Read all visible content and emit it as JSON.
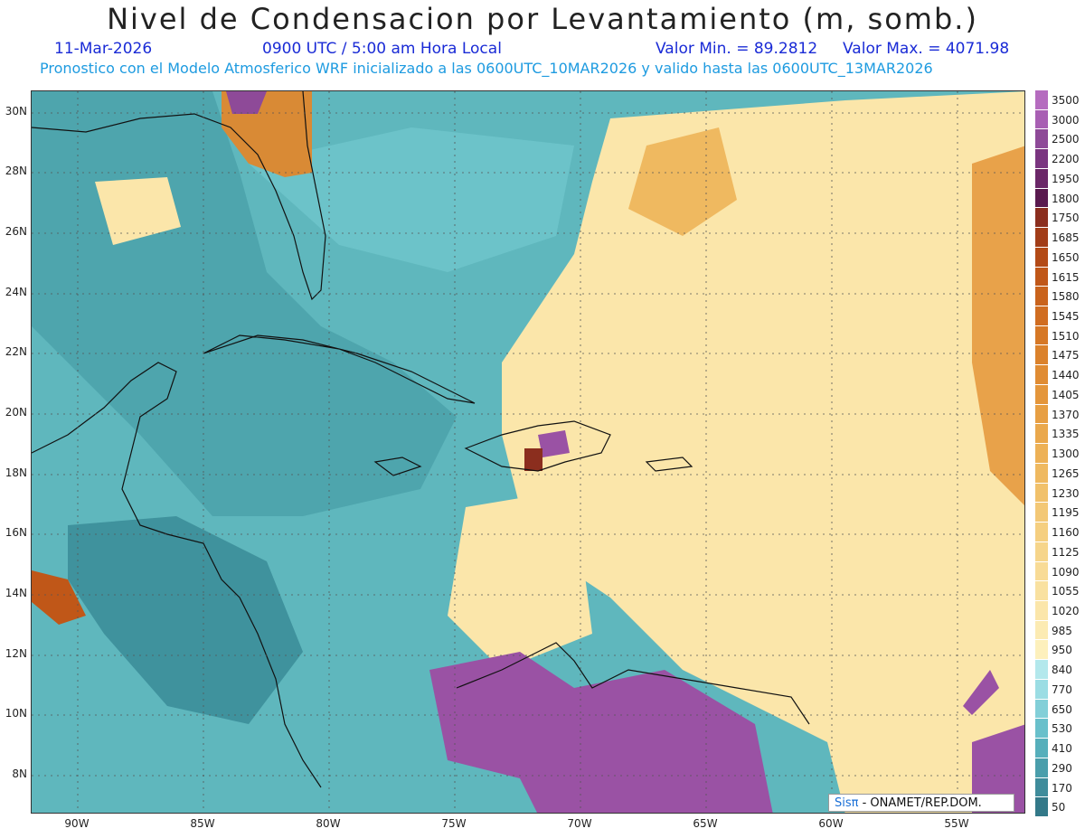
{
  "title": "Nivel de Condensacion por Levantamiento (m, somb.)",
  "date": "11-Mar-2026",
  "time": "0900 UTC / 5:00 am Hora Local",
  "min_label": "Valor Min. = 89.2812",
  "max_label": "Valor Max. = 4071.98",
  "forecast_note": "Pronostico con el Modelo Atmosferico WRF inicializado a las 0600UTC_10MAR2026 y valido hasta las  0600UTC_13MAR2026",
  "credit": {
    "brand": "Sisπ",
    "text": "- ONAMET/REP.DOM."
  },
  "map": {
    "lat_labels": [
      "30N",
      "28N",
      "26N",
      "24N",
      "22N",
      "20N",
      "18N",
      "16N",
      "14N",
      "12N",
      "10N",
      "8N"
    ],
    "lon_labels": [
      "90W",
      "85W",
      "80W",
      "75W",
      "70W",
      "65W",
      "60W",
      "55W"
    ]
  },
  "colorbar": {
    "labels": [
      "3500",
      "3000",
      "2500",
      "2200",
      "1950",
      "1800",
      "1750",
      "1685",
      "1650",
      "1615",
      "1580",
      "1545",
      "1510",
      "1475",
      "1440",
      "1405",
      "1370",
      "1335",
      "1300",
      "1265",
      "1230",
      "1195",
      "1160",
      "1125",
      "1090",
      "1055",
      "1020",
      "985",
      "950",
      "840",
      "770",
      "650",
      "530",
      "410",
      "290",
      "170",
      "50"
    ],
    "colors": [
      "#b56cbf",
      "#a85fb3",
      "#8e4a98",
      "#7a3580",
      "#6b2768",
      "#5a1a4f",
      "#8b2e1e",
      "#a23d18",
      "#b34a16",
      "#c05718",
      "#c9631c",
      "#d06d21",
      "#d67826",
      "#db822c",
      "#e08c33",
      "#e4963b",
      "#e79f43",
      "#eaa84c",
      "#edb156",
      "#efb960",
      "#f1c16b",
      "#f3c876",
      "#f5cf80",
      "#f6d58b",
      "#f8db96",
      "#f9e1a0",
      "#fbe6aa",
      "#fcebb3",
      "#fdf0bc",
      "#b3e8ec",
      "#9bdde4",
      "#82cfd8",
      "#69c0cb",
      "#56afbb",
      "#4a9eab",
      "#3f8c9b",
      "#337989"
    ]
  }
}
